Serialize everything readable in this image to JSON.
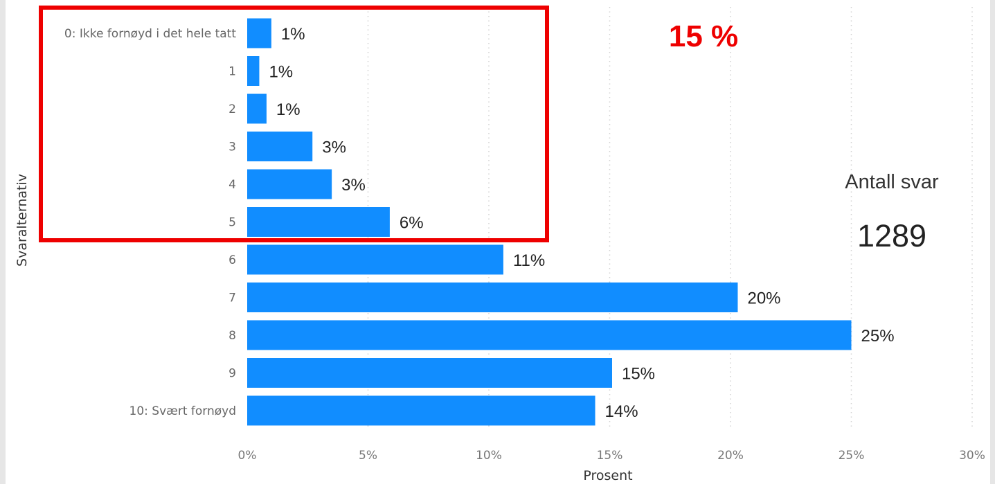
{
  "chart_data": {
    "type": "bar",
    "orientation": "horizontal",
    "categories": [
      "0: Ikke fornøyd i det hele tatt",
      "1",
      "2",
      "3",
      "4",
      "5",
      "6",
      "7",
      "8",
      "9",
      "10: Svært fornøyd"
    ],
    "values": [
      1.0,
      0.5,
      0.8,
      2.7,
      3.5,
      5.9,
      10.6,
      20.3,
      25.0,
      15.1,
      14.4
    ],
    "data_labels": [
      "1%",
      "1%",
      "1%",
      "3%",
      "3%",
      "6%",
      "11%",
      "20%",
      "25%",
      "15%",
      "14%"
    ],
    "xlabel": "Prosent",
    "ylabel": "Svaralternativ",
    "xlim": [
      0,
      30
    ],
    "xticks": [
      0,
      5,
      10,
      15,
      20,
      25,
      30
    ],
    "xtick_labels": [
      "0%",
      "5%",
      "10%",
      "15%",
      "20%",
      "25%",
      "30%"
    ],
    "grid": "vertical dotted",
    "bar_color": "#118dff"
  },
  "annotation": {
    "highlight_text": "15 %",
    "highlight_color": "#ee0000",
    "highlight_box_categories": [
      "0: Ikke fornøyd i det hele tatt",
      "1",
      "2",
      "3",
      "4",
      "5"
    ]
  },
  "card": {
    "label": "Antall svar",
    "value": "1289"
  }
}
